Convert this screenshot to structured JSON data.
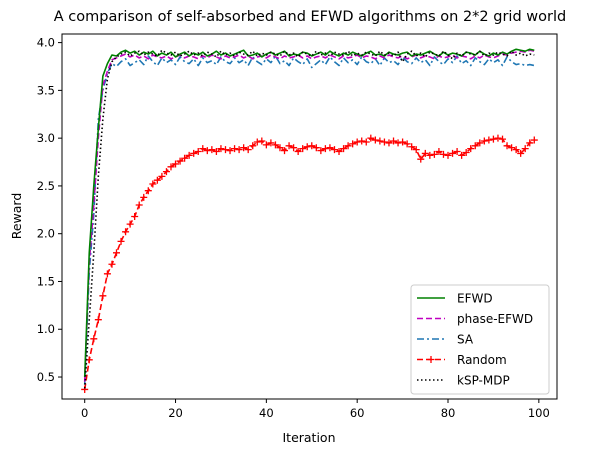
{
  "chart_data": {
    "type": "line",
    "title": "A comparison of self-absorbed and EFWD algorithms on 2*2 grid world",
    "xlabel": "Iteration",
    "ylabel": "Reward",
    "xlim": [
      -5,
      104
    ],
    "ylim": [
      0.27,
      4.09
    ],
    "xticks": [
      0,
      20,
      40,
      60,
      80,
      100
    ],
    "yticks": [
      0.5,
      1.0,
      1.5,
      2.0,
      2.5,
      3.0,
      3.5,
      4.0
    ],
    "xtick_labels": [
      "0",
      "20",
      "40",
      "60",
      "80",
      "100"
    ],
    "ytick_labels": [
      "0.5",
      "1.0",
      "1.5",
      "2.0",
      "2.5",
      "3.0",
      "3.5",
      "4.0"
    ],
    "grid": false,
    "legend_position": "lower-right",
    "x": [
      0,
      1,
      2,
      3,
      4,
      5,
      6,
      7,
      8,
      9,
      10,
      11,
      12,
      13,
      14,
      15,
      16,
      17,
      18,
      19,
      20,
      21,
      22,
      23,
      24,
      25,
      26,
      27,
      28,
      29,
      30,
      31,
      32,
      33,
      34,
      35,
      36,
      37,
      38,
      39,
      40,
      41,
      42,
      43,
      44,
      45,
      46,
      47,
      48,
      49,
      50,
      51,
      52,
      53,
      54,
      55,
      56,
      57,
      58,
      59,
      60,
      61,
      62,
      63,
      64,
      65,
      66,
      67,
      68,
      69,
      70,
      71,
      72,
      73,
      74,
      75,
      76,
      77,
      78,
      79,
      80,
      81,
      82,
      83,
      84,
      85,
      86,
      87,
      88,
      89,
      90,
      91,
      92,
      93,
      94,
      95,
      96,
      97,
      98,
      99
    ],
    "series": [
      {
        "name": "EFWD",
        "color": "#008000",
        "style": "solid",
        "marker": "none",
        "values": [
          0.5,
          1.8,
          2.5,
          3.1,
          3.65,
          3.78,
          3.87,
          3.86,
          3.9,
          3.92,
          3.89,
          3.91,
          3.87,
          3.9,
          3.88,
          3.91,
          3.86,
          3.89,
          3.87,
          3.9,
          3.85,
          3.88,
          3.9,
          3.86,
          3.89,
          3.87,
          3.9,
          3.86,
          3.88,
          3.91,
          3.87,
          3.89,
          3.86,
          3.88,
          3.9,
          3.92,
          3.86,
          3.87,
          3.89,
          3.85,
          3.88,
          3.9,
          3.87,
          3.89,
          3.91,
          3.86,
          3.88,
          3.87,
          3.9,
          3.89,
          3.86,
          3.88,
          3.9,
          3.87,
          3.91,
          3.88,
          3.86,
          3.89,
          3.87,
          3.9,
          3.88,
          3.86,
          3.89,
          3.91,
          3.87,
          3.88,
          3.86,
          3.9,
          3.88,
          3.87,
          3.89,
          3.9,
          3.86,
          3.88,
          3.87,
          3.89,
          3.91,
          3.88,
          3.86,
          3.9,
          3.87,
          3.89,
          3.88,
          3.86,
          3.9,
          3.89,
          3.87,
          3.91,
          3.88,
          3.86,
          3.89,
          3.87,
          3.9,
          3.88,
          3.91,
          3.93,
          3.92,
          3.91,
          3.93,
          3.92
        ]
      },
      {
        "name": "phase-EFWD",
        "color": "#bf00bf",
        "style": "dashed",
        "marker": "none",
        "values": [
          0.45,
          1.7,
          2.3,
          3.0,
          3.55,
          3.7,
          3.82,
          3.84,
          3.86,
          3.88,
          3.85,
          3.87,
          3.84,
          3.86,
          3.83,
          3.87,
          3.85,
          3.84,
          3.86,
          3.83,
          3.85,
          3.87,
          3.84,
          3.86,
          3.85,
          3.83,
          3.86,
          3.84,
          3.87,
          3.85,
          3.83,
          3.86,
          3.84,
          3.85,
          3.87,
          3.84,
          3.86,
          3.83,
          3.85,
          3.86,
          3.84,
          3.87,
          3.85,
          3.83,
          3.86,
          3.84,
          3.85,
          3.87,
          3.84,
          3.86,
          3.83,
          3.85,
          3.86,
          3.84,
          3.87,
          3.85,
          3.83,
          3.86,
          3.84,
          3.85,
          3.87,
          3.84,
          3.86,
          3.85,
          3.83,
          3.86,
          3.84,
          3.87,
          3.85,
          3.84,
          3.86,
          3.83,
          3.85,
          3.87,
          3.84,
          3.86,
          3.85,
          3.83,
          3.86,
          3.84,
          3.85,
          3.87,
          3.84,
          3.86,
          3.85,
          3.83,
          3.86,
          3.84,
          3.87,
          3.85,
          3.84,
          3.86,
          3.88,
          3.87,
          3.89,
          3.9,
          3.91,
          3.9,
          3.92,
          3.91
        ]
      },
      {
        "name": "SA",
        "color": "#1f77b4",
        "style": "dashdot",
        "marker": "none",
        "values": [
          0.42,
          1.6,
          2.2,
          3.2,
          3.5,
          3.68,
          3.78,
          3.75,
          3.8,
          3.83,
          3.76,
          3.79,
          3.82,
          3.77,
          3.86,
          3.8,
          3.76,
          3.84,
          3.79,
          3.82,
          3.77,
          3.85,
          3.8,
          3.78,
          3.83,
          3.76,
          3.84,
          3.79,
          3.81,
          3.77,
          3.85,
          3.8,
          3.78,
          3.84,
          3.79,
          3.82,
          3.76,
          3.85,
          3.8,
          3.77,
          3.83,
          3.79,
          3.86,
          3.78,
          3.81,
          3.76,
          3.84,
          3.8,
          3.77,
          3.83,
          3.74,
          3.78,
          3.82,
          3.77,
          3.85,
          3.8,
          3.76,
          3.84,
          3.79,
          3.82,
          3.77,
          3.85,
          3.8,
          3.78,
          3.83,
          3.76,
          3.84,
          3.79,
          3.81,
          3.77,
          3.85,
          3.8,
          3.78,
          3.84,
          3.79,
          3.82,
          3.76,
          3.85,
          3.8,
          3.77,
          3.83,
          3.79,
          3.86,
          3.78,
          3.81,
          3.76,
          3.84,
          3.8,
          3.77,
          3.83,
          3.79,
          3.82,
          3.76,
          3.85,
          3.8,
          3.77,
          3.78,
          3.76,
          3.77,
          3.76
        ]
      },
      {
        "name": "Random",
        "color": "#ff0000",
        "style": "dashed",
        "marker": "+",
        "values": [
          0.37,
          0.68,
          0.9,
          1.1,
          1.35,
          1.58,
          1.68,
          1.8,
          1.92,
          2.02,
          2.1,
          2.18,
          2.3,
          2.38,
          2.45,
          2.52,
          2.56,
          2.6,
          2.65,
          2.7,
          2.73,
          2.76,
          2.79,
          2.82,
          2.84,
          2.86,
          2.89,
          2.87,
          2.88,
          2.86,
          2.89,
          2.88,
          2.87,
          2.89,
          2.88,
          2.9,
          2.88,
          2.92,
          2.96,
          2.97,
          2.93,
          2.95,
          2.93,
          2.9,
          2.87,
          2.92,
          2.9,
          2.86,
          2.89,
          2.91,
          2.92,
          2.9,
          2.87,
          2.89,
          2.9,
          2.88,
          2.86,
          2.89,
          2.92,
          2.94,
          2.96,
          2.97,
          2.96,
          3.0,
          2.98,
          2.97,
          2.96,
          2.95,
          2.97,
          2.95,
          2.96,
          2.94,
          2.91,
          2.88,
          2.78,
          2.84,
          2.82,
          2.83,
          2.86,
          2.83,
          2.82,
          2.84,
          2.86,
          2.82,
          2.85,
          2.89,
          2.92,
          2.95,
          2.97,
          2.98,
          2.99,
          3.0,
          2.99,
          2.92,
          2.9,
          2.88,
          2.84,
          2.89,
          2.95,
          2.98
        ]
      },
      {
        "name": "kSP-MDP",
        "color": "#000000",
        "style": "dotted",
        "marker": "none",
        "values": [
          0.38,
          1.1,
          1.8,
          2.6,
          3.2,
          3.62,
          3.8,
          3.85,
          3.88,
          3.9,
          3.86,
          3.89,
          3.91,
          3.87,
          3.9,
          3.88,
          3.86,
          3.92,
          3.89,
          3.87,
          3.9,
          3.86,
          3.88,
          3.91,
          3.87,
          3.89,
          3.86,
          3.9,
          3.88,
          3.85,
          3.91,
          3.87,
          3.89,
          3.86,
          3.9,
          3.88,
          3.87,
          3.91,
          3.86,
          3.89,
          3.87,
          3.9,
          3.88,
          3.86,
          3.91,
          3.87,
          3.89,
          3.85,
          3.9,
          3.88,
          3.86,
          3.91,
          3.87,
          3.89,
          3.86,
          3.9,
          3.88,
          3.87,
          3.91,
          3.86,
          3.89,
          3.87,
          3.9,
          3.88,
          3.86,
          3.91,
          3.87,
          3.89,
          3.86,
          3.9,
          3.8,
          3.88,
          3.91,
          3.86,
          3.89,
          3.85,
          3.9,
          3.88,
          3.86,
          3.91,
          3.87,
          3.83,
          3.89,
          3.86,
          3.9,
          3.88,
          3.87,
          3.91,
          3.86,
          3.89,
          3.87,
          3.9,
          3.88,
          3.86,
          3.91,
          3.87,
          3.89,
          3.86,
          3.88,
          3.87
        ]
      }
    ]
  }
}
